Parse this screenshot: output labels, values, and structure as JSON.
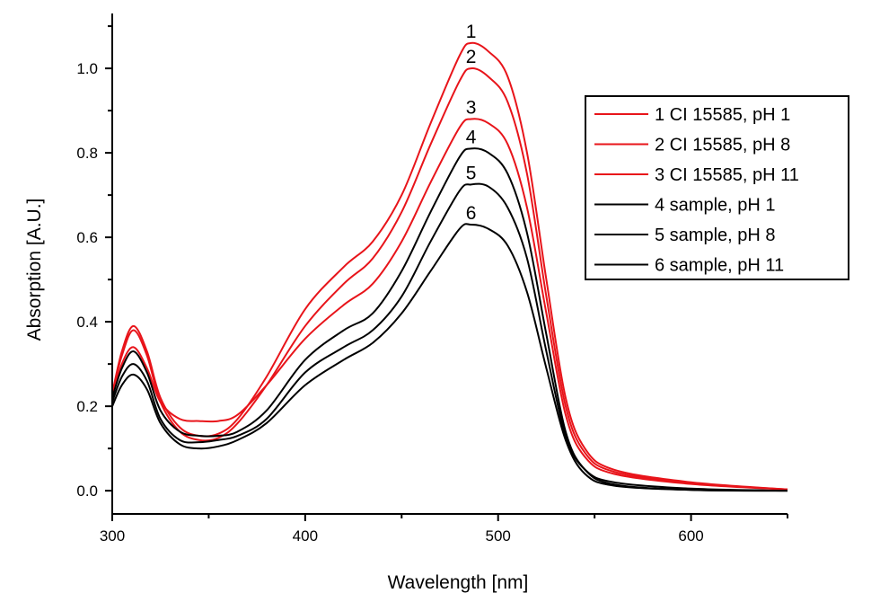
{
  "chart_data": {
    "type": "line",
    "title": "",
    "xlabel": "Wavelength [nm]",
    "ylabel": "Absorption [A.U.]",
    "xlim": [
      300,
      650
    ],
    "ylim": [
      -0.055,
      1.13
    ],
    "xticks": [
      300,
      400,
      500,
      600
    ],
    "yticks": [
      0.0,
      0.2,
      0.4,
      0.6,
      0.8,
      1.0
    ],
    "ytick_labels": [
      "0.0",
      "0.2",
      "0.4",
      "0.6",
      "0.8",
      "1.0"
    ],
    "xtick_labels": [
      "300",
      "400",
      "500",
      "600"
    ],
    "grid": false,
    "legend_position": "top-right",
    "x": [
      300,
      305,
      311,
      318,
      325,
      335,
      345,
      355,
      365,
      380,
      400,
      420,
      435,
      450,
      465,
      480,
      486,
      495,
      505,
      515,
      525,
      535,
      545,
      560,
      600,
      650
    ],
    "series": [
      {
        "name": "1 CI 15585, pH 1",
        "label": "1",
        "color": "#e8141a",
        "values": [
          0.23,
          0.33,
          0.39,
          0.33,
          0.22,
          0.15,
          0.13,
          0.135,
          0.17,
          0.27,
          0.43,
          0.53,
          0.59,
          0.7,
          0.87,
          1.03,
          1.06,
          1.04,
          0.98,
          0.8,
          0.5,
          0.22,
          0.1,
          0.05,
          0.02,
          0.003
        ]
      },
      {
        "name": "2 CI 15585, pH 8",
        "label": "2",
        "color": "#e8141a",
        "values": [
          0.23,
          0.32,
          0.38,
          0.32,
          0.21,
          0.14,
          0.12,
          0.125,
          0.16,
          0.25,
          0.39,
          0.49,
          0.55,
          0.66,
          0.82,
          0.97,
          1.0,
          0.98,
          0.92,
          0.75,
          0.46,
          0.2,
          0.09,
          0.045,
          0.018,
          0.003
        ]
      },
      {
        "name": "3 CI 15585, pH 11",
        "label": "3",
        "color": "#e8141a",
        "values": [
          0.22,
          0.3,
          0.34,
          0.29,
          0.21,
          0.17,
          0.165,
          0.165,
          0.18,
          0.25,
          0.36,
          0.44,
          0.49,
          0.59,
          0.73,
          0.86,
          0.88,
          0.87,
          0.82,
          0.67,
          0.42,
          0.18,
          0.08,
          0.04,
          0.016,
          0.003
        ]
      },
      {
        "name": "4 sample, pH 1",
        "label": "4",
        "color": "#000000",
        "values": [
          0.22,
          0.29,
          0.33,
          0.28,
          0.19,
          0.14,
          0.13,
          0.13,
          0.14,
          0.19,
          0.31,
          0.38,
          0.42,
          0.52,
          0.66,
          0.79,
          0.81,
          0.8,
          0.75,
          0.61,
          0.37,
          0.14,
          0.05,
          0.015,
          0.002,
          0.0
        ]
      },
      {
        "name": "5 sample, pH 8",
        "label": "5",
        "color": "#000000",
        "values": [
          0.21,
          0.27,
          0.3,
          0.26,
          0.17,
          0.12,
          0.115,
          0.12,
          0.13,
          0.17,
          0.28,
          0.34,
          0.38,
          0.46,
          0.59,
          0.71,
          0.725,
          0.72,
          0.67,
          0.55,
          0.33,
          0.13,
          0.05,
          0.02,
          0.005,
          0.0
        ]
      },
      {
        "name": "6 sample, pH 11",
        "label": "6",
        "color": "#000000",
        "values": [
          0.2,
          0.25,
          0.275,
          0.24,
          0.16,
          0.11,
          0.1,
          0.105,
          0.12,
          0.16,
          0.25,
          0.31,
          0.35,
          0.42,
          0.52,
          0.62,
          0.63,
          0.62,
          0.58,
          0.47,
          0.29,
          0.12,
          0.04,
          0.012,
          0.002,
          0.0
        ]
      }
    ]
  }
}
